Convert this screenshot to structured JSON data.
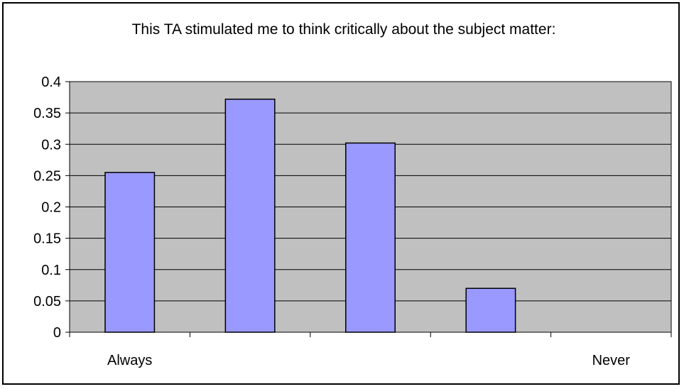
{
  "chart_data": {
    "type": "bar",
    "title": "This TA stimulated me to think critically about the subject matter:",
    "xlabel": "",
    "ylabel": "",
    "categories": [
      "Always",
      "",
      "",
      "",
      "Never"
    ],
    "values": [
      0.255,
      0.372,
      0.302,
      0.07,
      0
    ],
    "ylim": [
      0,
      0.4
    ],
    "yticks": [
      0,
      0.05,
      0.1,
      0.15,
      0.2,
      0.25,
      0.3,
      0.35,
      0.4
    ],
    "ytick_labels": [
      "0",
      "0.05",
      "0.1",
      "0.15",
      "0.2",
      "0.25",
      "0.3",
      "0.35",
      "0.4"
    ],
    "grid": true,
    "legend": "none",
    "colors": {
      "bar_fill": "#9999ff",
      "bar_stroke": "#000000",
      "plot_background": "#c0c0c0",
      "gridline": "#000000",
      "frame": "#000000"
    }
  }
}
